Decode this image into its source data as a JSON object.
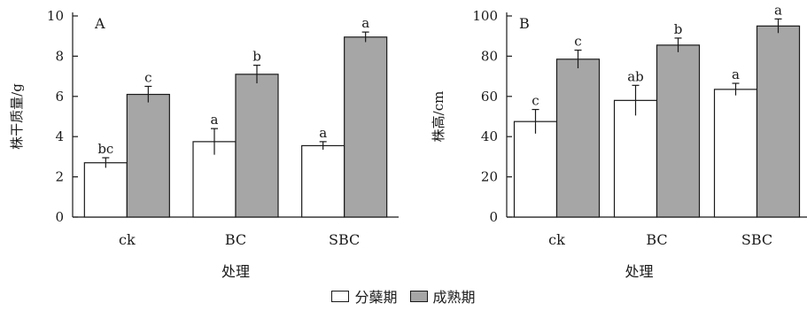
{
  "colors": {
    "series1": "#ffffff",
    "series2": "#a6a6a6",
    "stroke": "#1a1a1a"
  },
  "legend": {
    "items": [
      {
        "label": "分蘖期"
      },
      {
        "label": "成熟期"
      }
    ]
  },
  "chart_data": [
    {
      "type": "bar",
      "panel_label": "A",
      "ylabel": "株干质量/g",
      "xlabel": "处理",
      "ylim": [
        0,
        10
      ],
      "yticks": [
        0,
        2,
        4,
        6,
        8,
        10
      ],
      "categories": [
        "ck",
        "BC",
        "SBC"
      ],
      "series": [
        {
          "name": "分蘖期",
          "values": [
            2.7,
            3.75,
            3.55
          ],
          "errors": [
            0.25,
            0.65,
            0.2
          ],
          "letters": [
            "bc",
            "a",
            "a"
          ]
        },
        {
          "name": "成熟期",
          "values": [
            6.1,
            7.1,
            8.95
          ],
          "errors": [
            0.4,
            0.45,
            0.25
          ],
          "letters": [
            "c",
            "b",
            "a"
          ]
        }
      ]
    },
    {
      "type": "bar",
      "panel_label": "B",
      "ylabel": "株高/cm",
      "xlabel": "处理",
      "ylim": [
        0,
        100
      ],
      "yticks": [
        0,
        20,
        40,
        60,
        80,
        100
      ],
      "categories": [
        "ck",
        "BC",
        "SBC"
      ],
      "series": [
        {
          "name": "分蘖期",
          "values": [
            47.5,
            58,
            63.5
          ],
          "errors": [
            6,
            7.5,
            3
          ],
          "letters": [
            "c",
            "ab",
            "a"
          ]
        },
        {
          "name": "成熟期",
          "values": [
            78.5,
            85.5,
            95
          ],
          "errors": [
            4.5,
            3.5,
            3.5
          ],
          "letters": [
            "c",
            "b",
            "a"
          ]
        }
      ]
    }
  ]
}
